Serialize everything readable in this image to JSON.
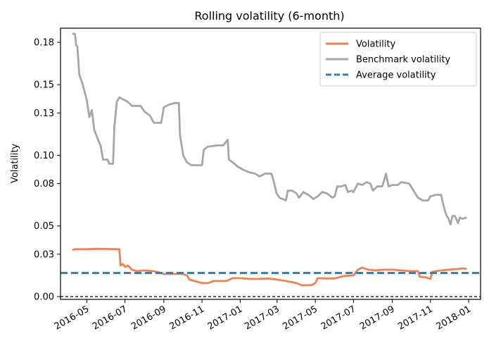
{
  "chart_data": {
    "type": "line",
    "title": "Rolling volatility (6-month)",
    "xlabel": "",
    "ylabel": "Volatility",
    "ylim": [
      -0.002,
      0.19
    ],
    "xlim": [
      "2016-03-20",
      "2018-01-20"
    ],
    "y_ticks": [
      0.0,
      0.03,
      0.05,
      0.08,
      0.1,
      0.13,
      0.15,
      0.18
    ],
    "y_tick_labels": [
      "0.00",
      "0.03",
      "0.05",
      "0.08",
      "0.10",
      "0.13",
      "0.15",
      "0.18"
    ],
    "x_ticks": [
      "2016-05-01",
      "2016-07-01",
      "2016-09-01",
      "2016-11-01",
      "2017-01-01",
      "2017-03-01",
      "2017-05-01",
      "2017-07-01",
      "2017-09-01",
      "2017-11-01",
      "2018-01-01"
    ],
    "x_tick_labels": [
      "2016-05",
      "2016-07",
      "2016-09",
      "2016-11",
      "2017-01",
      "2017-03",
      "2017-05",
      "2017-07",
      "2017-09",
      "2017-11",
      "2018-01"
    ],
    "legend_position": "top-right",
    "grid": false,
    "series": [
      {
        "name": "Volatility",
        "color": "#f47f4f",
        "style": "solid",
        "points": [
          [
            "2016-04-08",
            0.033
          ],
          [
            "2016-04-12",
            0.0335
          ],
          [
            "2016-05-01",
            0.0335
          ],
          [
            "2016-05-15",
            0.0338
          ],
          [
            "2016-06-01",
            0.0337
          ],
          [
            "2016-06-22",
            0.0335
          ],
          [
            "2016-06-24",
            0.022
          ],
          [
            "2016-06-28",
            0.023
          ],
          [
            "2016-07-01",
            0.021
          ],
          [
            "2016-07-06",
            0.022
          ],
          [
            "2016-07-12",
            0.019
          ],
          [
            "2016-07-20",
            0.018
          ],
          [
            "2016-08-01",
            0.0185
          ],
          [
            "2016-08-15",
            0.018
          ],
          [
            "2016-08-25",
            0.017
          ],
          [
            "2016-09-01",
            0.016
          ],
          [
            "2016-09-15",
            0.016
          ],
          [
            "2016-10-01",
            0.016
          ],
          [
            "2016-10-08",
            0.015
          ],
          [
            "2016-10-12",
            0.012
          ],
          [
            "2016-10-20",
            0.011
          ],
          [
            "2016-11-01",
            0.0095
          ],
          [
            "2016-11-10",
            0.0095
          ],
          [
            "2016-11-20",
            0.011
          ],
          [
            "2016-12-01",
            0.011
          ],
          [
            "2016-12-10",
            0.011
          ],
          [
            "2016-12-20",
            0.013
          ],
          [
            "2017-01-01",
            0.013
          ],
          [
            "2017-01-15",
            0.0125
          ],
          [
            "2017-02-01",
            0.0125
          ],
          [
            "2017-02-15",
            0.0128
          ],
          [
            "2017-03-01",
            0.012
          ],
          [
            "2017-03-15",
            0.011
          ],
          [
            "2017-04-01",
            0.0095
          ],
          [
            "2017-04-10",
            0.008
          ],
          [
            "2017-04-25",
            0.008
          ],
          [
            "2017-05-01",
            0.0095
          ],
          [
            "2017-05-05",
            0.013
          ],
          [
            "2017-05-20",
            0.0128
          ],
          [
            "2017-06-01",
            0.0128
          ],
          [
            "2017-06-15",
            0.0145
          ],
          [
            "2017-07-01",
            0.015
          ],
          [
            "2017-07-08",
            0.019
          ],
          [
            "2017-07-15",
            0.0205
          ],
          [
            "2017-07-25",
            0.019
          ],
          [
            "2017-08-05",
            0.0185
          ],
          [
            "2017-08-20",
            0.019
          ],
          [
            "2017-09-01",
            0.019
          ],
          [
            "2017-09-15",
            0.0185
          ],
          [
            "2017-10-01",
            0.018
          ],
          [
            "2017-10-12",
            0.018
          ],
          [
            "2017-10-15",
            0.014
          ],
          [
            "2017-10-25",
            0.0135
          ],
          [
            "2017-11-01",
            0.0125
          ],
          [
            "2017-11-04",
            0.0175
          ],
          [
            "2017-11-10",
            0.018
          ],
          [
            "2017-11-18",
            0.0185
          ],
          [
            "2017-12-01",
            0.019
          ],
          [
            "2017-12-15",
            0.0195
          ],
          [
            "2017-12-22",
            0.02
          ],
          [
            "2017-12-29",
            0.0195
          ]
        ]
      },
      {
        "name": "Benchmark volatility",
        "color": "#a6a6a6",
        "style": "solid",
        "points": [
          [
            "2016-04-08",
            0.186
          ],
          [
            "2016-04-12",
            0.186
          ],
          [
            "2016-04-14",
            0.178
          ],
          [
            "2016-04-16",
            0.177
          ],
          [
            "2016-04-19",
            0.157
          ],
          [
            "2016-04-24",
            0.151
          ],
          [
            "2016-04-28",
            0.144
          ],
          [
            "2016-05-01",
            0.139
          ],
          [
            "2016-05-05",
            0.127
          ],
          [
            "2016-05-09",
            0.132
          ],
          [
            "2016-05-13",
            0.118
          ],
          [
            "2016-05-19",
            0.111
          ],
          [
            "2016-05-23",
            0.107
          ],
          [
            "2016-05-27",
            0.097
          ],
          [
            "2016-06-03",
            0.097
          ],
          [
            "2016-06-06",
            0.094
          ],
          [
            "2016-06-12",
            0.094
          ],
          [
            "2016-06-14",
            0.12
          ],
          [
            "2016-06-18",
            0.138
          ],
          [
            "2016-06-22",
            0.141
          ],
          [
            "2016-07-05",
            0.138
          ],
          [
            "2016-07-12",
            0.135
          ],
          [
            "2016-07-26",
            0.135
          ],
          [
            "2016-08-01",
            0.131
          ],
          [
            "2016-08-10",
            0.128
          ],
          [
            "2016-08-16",
            0.123
          ],
          [
            "2016-08-28",
            0.123
          ],
          [
            "2016-09-01",
            0.134
          ],
          [
            "2016-09-10",
            0.136
          ],
          [
            "2016-09-18",
            0.137
          ],
          [
            "2016-09-25",
            0.137
          ],
          [
            "2016-09-27",
            0.114
          ],
          [
            "2016-10-02",
            0.1
          ],
          [
            "2016-10-08",
            0.095
          ],
          [
            "2016-10-15",
            0.093
          ],
          [
            "2016-10-25",
            0.093
          ],
          [
            "2016-11-01",
            0.093
          ],
          [
            "2016-11-04",
            0.104
          ],
          [
            "2016-11-10",
            0.106
          ],
          [
            "2016-11-25",
            0.107
          ],
          [
            "2016-12-05",
            0.107
          ],
          [
            "2016-12-12",
            0.111
          ],
          [
            "2016-12-14",
            0.097
          ],
          [
            "2016-12-20",
            0.095
          ],
          [
            "2016-12-28",
            0.092
          ],
          [
            "2017-01-05",
            0.09
          ],
          [
            "2017-01-15",
            0.088
          ],
          [
            "2017-01-25",
            0.087
          ],
          [
            "2017-02-01",
            0.085
          ],
          [
            "2017-02-10",
            0.087
          ],
          [
            "2017-02-20",
            0.087
          ],
          [
            "2017-02-24",
            0.081
          ],
          [
            "2017-02-28",
            0.073
          ],
          [
            "2017-03-05",
            0.07
          ],
          [
            "2017-03-15",
            0.068
          ],
          [
            "2017-03-18",
            0.075
          ],
          [
            "2017-03-25",
            0.075
          ],
          [
            "2017-04-01",
            0.073
          ],
          [
            "2017-04-05",
            0.07
          ],
          [
            "2017-04-12",
            0.074
          ],
          [
            "2017-04-20",
            0.072
          ],
          [
            "2017-04-28",
            0.069
          ],
          [
            "2017-05-05",
            0.071
          ],
          [
            "2017-05-12",
            0.074
          ],
          [
            "2017-05-20",
            0.073
          ],
          [
            "2017-05-28",
            0.07
          ],
          [
            "2017-06-01",
            0.071
          ],
          [
            "2017-06-05",
            0.078
          ],
          [
            "2017-06-12",
            0.078
          ],
          [
            "2017-06-18",
            0.079
          ],
          [
            "2017-06-22",
            0.074
          ],
          [
            "2017-06-28",
            0.075
          ],
          [
            "2017-07-01",
            0.074
          ],
          [
            "2017-07-08",
            0.08
          ],
          [
            "2017-07-15",
            0.079
          ],
          [
            "2017-07-22",
            0.081
          ],
          [
            "2017-07-28",
            0.08
          ],
          [
            "2017-08-01",
            0.075
          ],
          [
            "2017-08-08",
            0.078
          ],
          [
            "2017-08-16",
            0.078
          ],
          [
            "2017-08-22",
            0.087
          ],
          [
            "2017-08-26",
            0.078
          ],
          [
            "2017-09-01",
            0.079
          ],
          [
            "2017-09-10",
            0.079
          ],
          [
            "2017-09-15",
            0.081
          ],
          [
            "2017-09-28",
            0.08
          ],
          [
            "2017-10-05",
            0.075
          ],
          [
            "2017-10-12",
            0.07
          ],
          [
            "2017-10-20",
            0.068
          ],
          [
            "2017-10-28",
            0.068
          ],
          [
            "2017-11-01",
            0.071
          ],
          [
            "2017-11-10",
            0.072
          ],
          [
            "2017-11-18",
            0.072
          ],
          [
            "2017-11-22",
            0.064
          ],
          [
            "2017-11-26",
            0.058
          ],
          [
            "2017-11-30",
            0.055
          ],
          [
            "2017-12-03",
            0.051
          ],
          [
            "2017-12-06",
            0.057
          ],
          [
            "2017-12-10",
            0.057
          ],
          [
            "2017-12-15",
            0.052
          ],
          [
            "2017-12-18",
            0.056
          ],
          [
            "2017-12-22",
            0.055
          ],
          [
            "2017-12-29",
            0.056
          ]
        ]
      },
      {
        "name": "Average volatility",
        "color": "#3a7fb4",
        "style": "dashed",
        "constant": 0.0167
      }
    ],
    "reference_lines": [
      {
        "y": 0.0,
        "color": "#000000",
        "style": "dashed"
      }
    ]
  }
}
